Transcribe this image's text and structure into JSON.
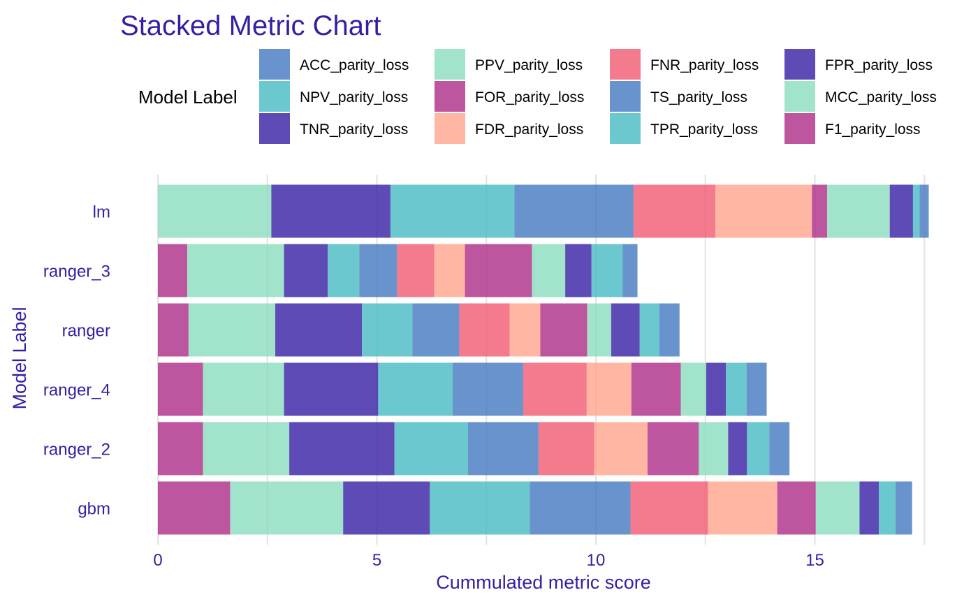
{
  "chart_data": {
    "type": "bar",
    "orientation": "horizontal",
    "stacked": true,
    "title": "Stacked Metric Chart",
    "xlabel": "Cummulated metric score",
    "ylabel": "Model Label",
    "legend_title": "Model Label",
    "legend_position": "top",
    "xlim": [
      0,
      17.5
    ],
    "xticks": [
      "0",
      "5",
      "10",
      "15"
    ],
    "grid": true,
    "categories": [
      "lm",
      "ranger_3",
      "ranger",
      "ranger_4",
      "ranger_2",
      "gbm"
    ],
    "series": [
      {
        "name": "F1_parity_loss",
        "color": "#ae2c87",
        "values": [
          0.0,
          0.67,
          0.7,
          1.03,
          1.03,
          1.65
        ]
      },
      {
        "name": "MCC_parity_loss",
        "color": "#8bdcbe",
        "values": [
          2.59,
          2.21,
          1.98,
          1.85,
          1.97,
          2.58
        ]
      },
      {
        "name": "FPR_parity_loss",
        "color": "#371ea3",
        "values": [
          2.72,
          1.0,
          1.98,
          2.15,
          2.4,
          1.98
        ]
      },
      {
        "name": "TPR_parity_loss",
        "color": "#46bac2",
        "values": [
          2.83,
          0.72,
          1.15,
          1.7,
          1.68,
          2.28
        ]
      },
      {
        "name": "TS_parity_loss",
        "color": "#4378bf",
        "values": [
          2.72,
          0.86,
          1.07,
          1.61,
          1.61,
          2.3
        ]
      },
      {
        "name": "FNR_parity_loss",
        "color": "#f05a71",
        "values": [
          1.87,
          0.85,
          1.15,
          1.45,
          1.27,
          1.77
        ]
      },
      {
        "name": "FDR_parity_loss",
        "color": "#ffa58c",
        "values": [
          2.2,
          0.7,
          0.7,
          1.02,
          1.22,
          1.58
        ]
      },
      {
        "name": "FOR_parity_loss",
        "color": "#ae2c87",
        "values": [
          0.35,
          1.53,
          1.07,
          1.13,
          1.17,
          0.88
        ]
      },
      {
        "name": "PPV_parity_loss",
        "color": "#8bdcbe",
        "values": [
          1.43,
          0.76,
          0.55,
          0.58,
          0.67,
          1.0
        ]
      },
      {
        "name": "TNR_parity_loss",
        "color": "#371ea3",
        "values": [
          0.53,
          0.6,
          0.65,
          0.45,
          0.43,
          0.44
        ]
      },
      {
        "name": "NPV_parity_loss",
        "color": "#46bac2",
        "values": [
          0.15,
          0.71,
          0.45,
          0.47,
          0.51,
          0.38
        ]
      },
      {
        "name": "ACC_parity_loss",
        "color": "#4378bf",
        "values": [
          0.21,
          0.34,
          0.46,
          0.46,
          0.46,
          0.38
        ]
      }
    ],
    "legend_order": [
      "ACC_parity_loss",
      "NPV_parity_loss",
      "TNR_parity_loss",
      "PPV_parity_loss",
      "FOR_parity_loss",
      "FDR_parity_loss",
      "FNR_parity_loss",
      "TS_parity_loss",
      "TPR_parity_loss",
      "FPR_parity_loss",
      "MCC_parity_loss",
      "F1_parity_loss"
    ]
  }
}
